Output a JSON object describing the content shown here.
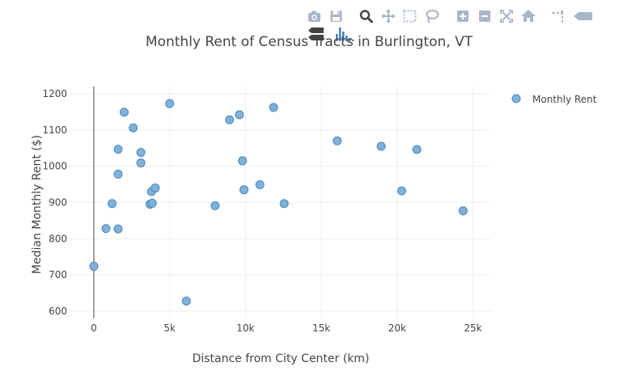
{
  "modebar": {
    "icons": [
      "camera-icon",
      "save-icon",
      "zoom-icon",
      "pan-icon",
      "box-select-icon",
      "lasso-select-icon",
      "zoom-in-icon",
      "zoom-out-icon",
      "autoscale-icon",
      "reset-axes-icon",
      "spike-lines-icon",
      "hover-closest-icon",
      "hover-compare-icon",
      "plotly-logo-icon"
    ]
  },
  "colors": {
    "marker_fill": "#7fb2d9",
    "marker_stroke": "#4a86bd",
    "grid": "#eeeeee",
    "zero_line": "#444444",
    "text": "#444444",
    "modebar_icon": "#a8b6c9",
    "modebar_active": "#444444",
    "logo": "#4a7fc1"
  },
  "chart_data": {
    "type": "scatter",
    "title": "Monthly Rent of Census Tracts in Burlington, VT",
    "xlabel": "Distance from City Center (km)",
    "ylabel": "Median Monthly Rent ($)",
    "xlim": [
      -1600,
      26200
    ],
    "ylim": [
      580,
      1220
    ],
    "x_ticks": [
      0,
      5000,
      10000,
      15000,
      20000,
      25000
    ],
    "x_tick_labels": [
      "0",
      "5k",
      "10k",
      "15k",
      "20k",
      "25k"
    ],
    "y_ticks": [
      600,
      700,
      800,
      900,
      1000,
      1100,
      1200
    ],
    "y_tick_labels": [
      "600",
      "700",
      "800",
      "900",
      "1000",
      "1100",
      "1200"
    ],
    "grid": true,
    "legend": "top-right",
    "series": [
      {
        "name": "Monthly Rent",
        "points": [
          {
            "x": 0,
            "y": 724
          },
          {
            "x": 800,
            "y": 828
          },
          {
            "x": 1200,
            "y": 897
          },
          {
            "x": 1600,
            "y": 1047
          },
          {
            "x": 1600,
            "y": 978
          },
          {
            "x": 1600,
            "y": 827
          },
          {
            "x": 2000,
            "y": 1149
          },
          {
            "x": 2600,
            "y": 1106
          },
          {
            "x": 3100,
            "y": 1038
          },
          {
            "x": 3100,
            "y": 1009
          },
          {
            "x": 3700,
            "y": 895
          },
          {
            "x": 3800,
            "y": 930
          },
          {
            "x": 3850,
            "y": 898
          },
          {
            "x": 4050,
            "y": 940
          },
          {
            "x": 5000,
            "y": 1173
          },
          {
            "x": 6100,
            "y": 628
          },
          {
            "x": 8000,
            "y": 891
          },
          {
            "x": 8950,
            "y": 1128
          },
          {
            "x": 9600,
            "y": 1142
          },
          {
            "x": 9800,
            "y": 1015
          },
          {
            "x": 9900,
            "y": 935
          },
          {
            "x": 10950,
            "y": 949
          },
          {
            "x": 11850,
            "y": 1162
          },
          {
            "x": 12550,
            "y": 897
          },
          {
            "x": 16050,
            "y": 1070
          },
          {
            "x": 18950,
            "y": 1055
          },
          {
            "x": 20300,
            "y": 932
          },
          {
            "x": 21300,
            "y": 1046
          },
          {
            "x": 24350,
            "y": 877
          }
        ]
      }
    ]
  }
}
